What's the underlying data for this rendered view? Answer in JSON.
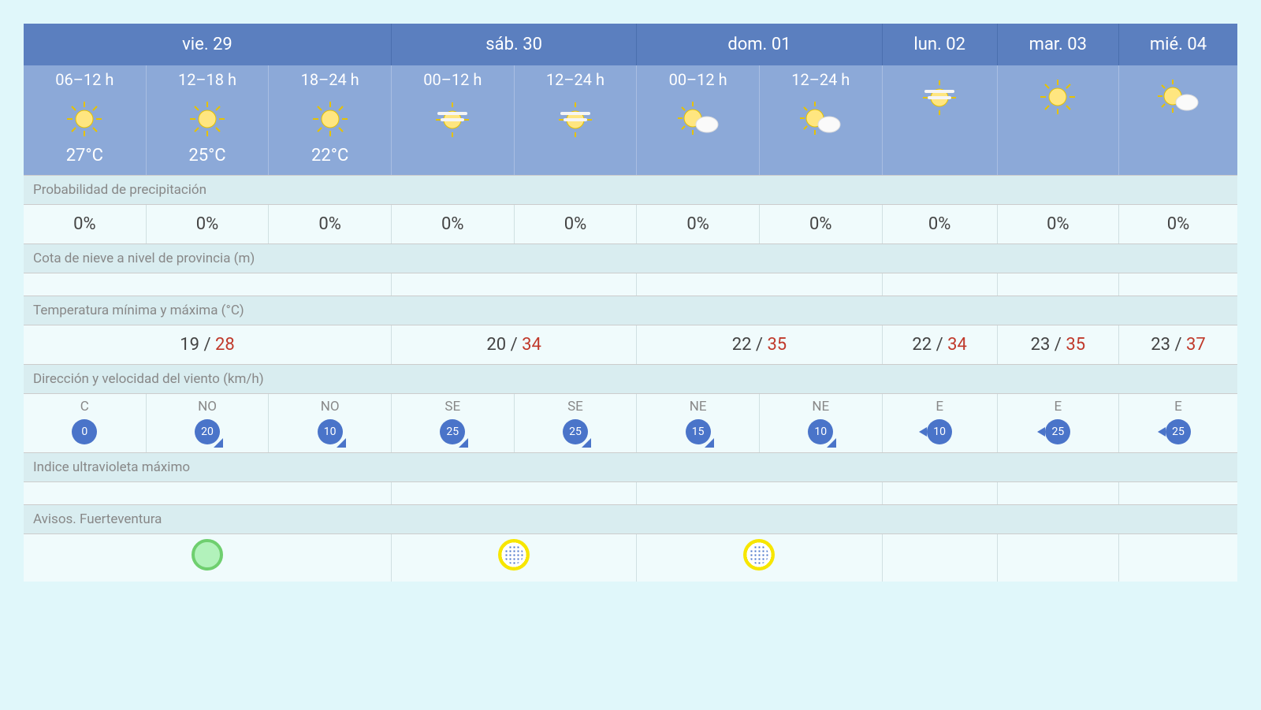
{
  "colors": {
    "page_bg": "#e0f7fa",
    "header_bg": "#5b7fbf",
    "period_bg": "#8ca9d8",
    "section_bg": "#d9edf0",
    "data_bg": "#f0fbfc",
    "temp_max": "#c0392b",
    "wind_pill": "#4a74c9",
    "aviso_green_fill": "#b2f2bb",
    "aviso_green_border": "#6fcf6f",
    "aviso_yellow": "#f7e600"
  },
  "days": [
    {
      "label": "vie. 29",
      "span": 3
    },
    {
      "label": "sáb. 30",
      "span": 2
    },
    {
      "label": "dom. 01",
      "span": 2
    },
    {
      "label": "lun. 02",
      "span": 1
    },
    {
      "label": "mar. 03",
      "span": 1
    },
    {
      "label": "mié. 04",
      "span": 1
    }
  ],
  "periods": [
    {
      "label": "06–12 h",
      "icon": "sun",
      "temp": "27°C"
    },
    {
      "label": "12–18 h",
      "icon": "sun",
      "temp": "25°C"
    },
    {
      "label": "18–24 h",
      "icon": "sun",
      "temp": "22°C"
    },
    {
      "label": "00–12 h",
      "icon": "haze",
      "temp": ""
    },
    {
      "label": "12–24 h",
      "icon": "haze",
      "temp": ""
    },
    {
      "label": "00–12 h",
      "icon": "sun-cloud",
      "temp": ""
    },
    {
      "label": "12–24 h",
      "icon": "sun-cloud",
      "temp": ""
    },
    {
      "label": "",
      "icon": "haze",
      "temp": ""
    },
    {
      "label": "",
      "icon": "sun",
      "temp": ""
    },
    {
      "label": "",
      "icon": "sun-cloud",
      "temp": ""
    }
  ],
  "sections": {
    "precip_label": "Probabilidad de precipitación",
    "snow_label": "Cota de nieve a nivel de provincia (m)",
    "temp_label": "Temperatura mínima y máxima (°C)",
    "wind_label": "Dirección y velocidad del viento (km/h)",
    "uv_label": "Indice ultravioleta máximo",
    "aviso_label": "Avisos. Fuerteventura"
  },
  "precip": [
    "0%",
    "0%",
    "0%",
    "0%",
    "0%",
    "0%",
    "0%",
    "0%",
    "0%",
    "0%"
  ],
  "temps": [
    {
      "span": 3,
      "min": "19",
      "max": "28"
    },
    {
      "span": 2,
      "min": "20",
      "max": "34"
    },
    {
      "span": 2,
      "min": "22",
      "max": "35"
    },
    {
      "span": 1,
      "min": "22",
      "max": "34"
    },
    {
      "span": 1,
      "min": "23",
      "max": "35"
    },
    {
      "span": 1,
      "min": "23",
      "max": "37"
    }
  ],
  "wind": [
    {
      "dir": "C",
      "speed": "0",
      "arrow": "none"
    },
    {
      "dir": "NO",
      "speed": "20",
      "arrow": "se"
    },
    {
      "dir": "NO",
      "speed": "10",
      "arrow": "se"
    },
    {
      "dir": "SE",
      "speed": "25",
      "arrow": "se"
    },
    {
      "dir": "SE",
      "speed": "25",
      "arrow": "se"
    },
    {
      "dir": "NE",
      "speed": "15",
      "arrow": "se"
    },
    {
      "dir": "NE",
      "speed": "10",
      "arrow": "se"
    },
    {
      "dir": "E",
      "speed": "10",
      "arrow": "w"
    },
    {
      "dir": "E",
      "speed": "25",
      "arrow": "w"
    },
    {
      "dir": "E",
      "speed": "25",
      "arrow": "w"
    }
  ],
  "avisos": [
    {
      "span": 3,
      "type": "green"
    },
    {
      "span": 2,
      "type": "yellow"
    },
    {
      "span": 2,
      "type": "yellow"
    },
    {
      "span": 1,
      "type": "none"
    },
    {
      "span": 1,
      "type": "none"
    },
    {
      "span": 1,
      "type": "none"
    }
  ]
}
